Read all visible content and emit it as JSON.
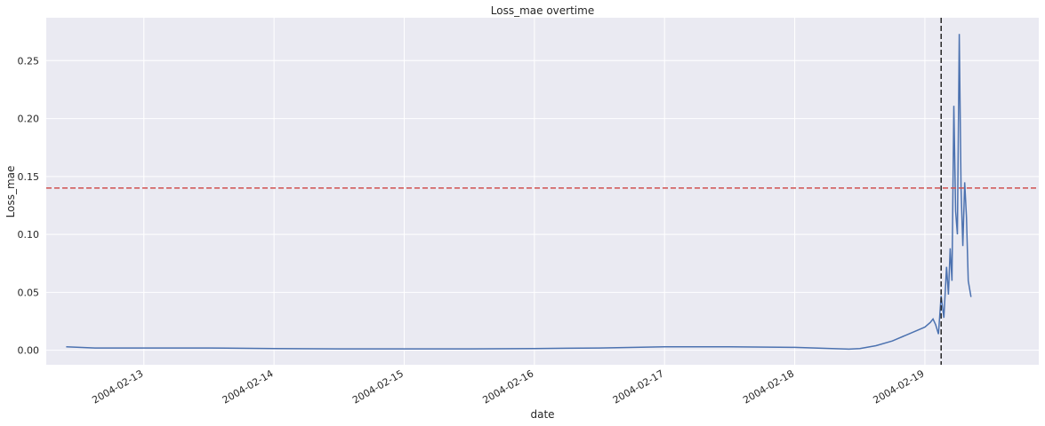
{
  "chart_data": {
    "type": "line",
    "title": "Loss_mae overtime",
    "xlabel": "date",
    "ylabel": "Loss_mae",
    "x_ticks": [
      "2004-02-13",
      "2004-02-14",
      "2004-02-15",
      "2004-02-16",
      "2004-02-17",
      "2004-02-18",
      "2004-02-19"
    ],
    "y_ticks": [
      "0.00",
      "0.05",
      "0.10",
      "0.15",
      "0.20",
      "0.25"
    ],
    "xlim": [
      "2004-02-12T06:00",
      "2004-02-19T21:00"
    ],
    "ylim": [
      -0.0125,
      0.287
    ],
    "grid": true,
    "background": "#eaeaf2",
    "line_color": "#4c72b0",
    "threshold": {
      "value": 0.14,
      "color": "#d0504f",
      "style": "dashed"
    },
    "marker_line": {
      "x": "2004-02-19T03:00",
      "color": "#262626",
      "style": "dashed"
    },
    "series": [
      {
        "x": [
          "2004-02-12T09:40",
          "2004-02-12T15:00",
          "2004-02-13T00:00",
          "2004-02-13T12:00",
          "2004-02-14T00:00",
          "2004-02-14T12:00",
          "2004-02-15T00:00",
          "2004-02-15T12:00",
          "2004-02-16T00:00",
          "2004-02-16T12:00",
          "2004-02-17T00:00",
          "2004-02-17T12:00",
          "2004-02-18T00:00",
          "2004-02-18T10:00",
          "2004-02-18T12:00",
          "2004-02-18T15:00",
          "2004-02-18T18:00",
          "2004-02-18T20:00",
          "2004-02-18T22:00",
          "2004-02-19T00:00",
          "2004-02-19T01:00",
          "2004-02-19T01:30",
          "2004-02-19T02:00",
          "2004-02-19T02:30",
          "2004-02-19T03:00",
          "2004-02-19T03:30",
          "2004-02-19T04:00",
          "2004-02-19T04:20",
          "2004-02-19T04:40",
          "2004-02-19T05:00",
          "2004-02-19T05:20",
          "2004-02-19T05:40",
          "2004-02-19T06:00",
          "2004-02-19T06:20",
          "2004-02-19T06:40",
          "2004-02-19T07:00",
          "2004-02-19T07:20",
          "2004-02-19T07:40",
          "2004-02-19T08:00",
          "2004-02-19T08:30"
        ],
        "y": [
          0.003,
          0.002,
          0.002,
          0.002,
          0.0015,
          0.0012,
          0.0012,
          0.0012,
          0.0015,
          0.002,
          0.003,
          0.003,
          0.0025,
          0.001,
          0.0015,
          0.004,
          0.008,
          0.012,
          0.016,
          0.02,
          0.024,
          0.027,
          0.022,
          0.014,
          0.047,
          0.028,
          0.072,
          0.048,
          0.088,
          0.06,
          0.211,
          0.12,
          0.1,
          0.273,
          0.14,
          0.09,
          0.145,
          0.115,
          0.06,
          0.046
        ]
      }
    ]
  }
}
